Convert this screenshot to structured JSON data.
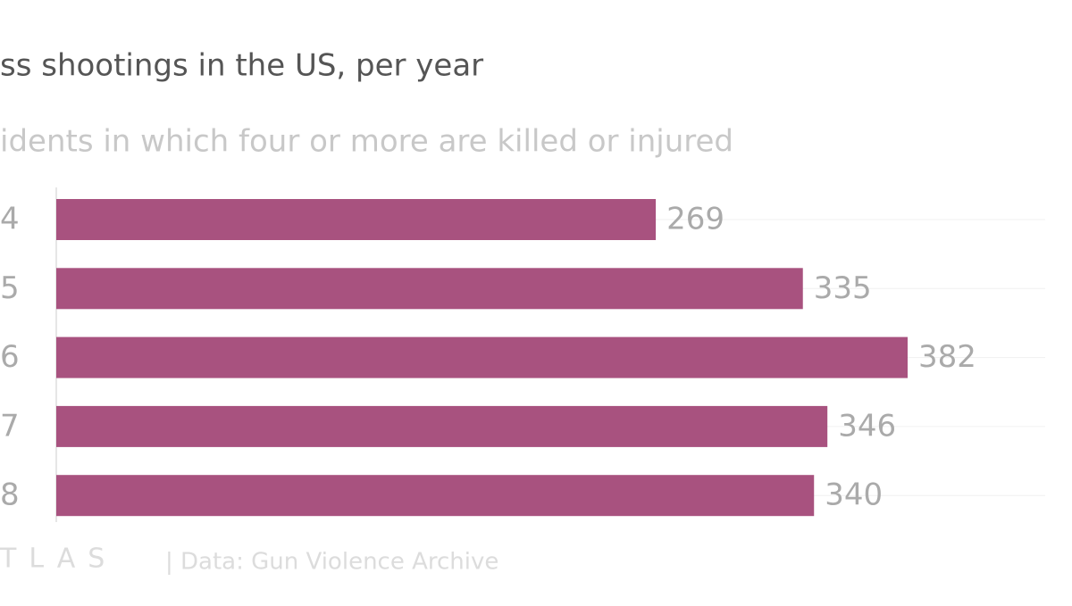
{
  "chart_data": {
    "type": "bar",
    "orientation": "horizontal",
    "title": "ss shootings in the US, per year",
    "subtitle": "idents in which four or more are killed or injured",
    "categories": [
      "4",
      "5",
      "6",
      "7",
      "8"
    ],
    "values": [
      269,
      335,
      382,
      346,
      340
    ],
    "color": "#a8527f",
    "logo": "TLAS",
    "source": "| Data: Gun Violence Archive"
  }
}
